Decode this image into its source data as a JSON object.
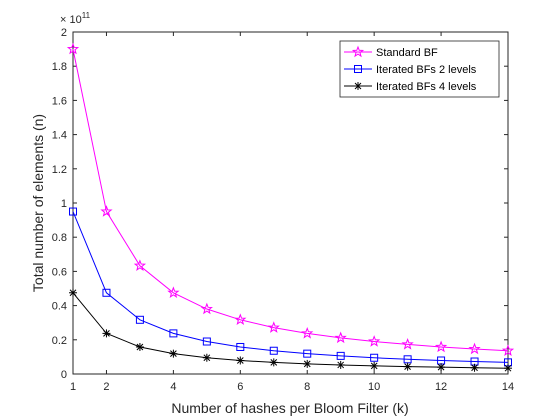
{
  "chart_data": {
    "type": "line",
    "xlabel": "Number of hashes per Bloom Filter (k)",
    "ylabel": "Total number of elements (n)",
    "y_exponent_label": "× 10",
    "y_exponent_power": "11",
    "y_scale": 100000000000,
    "xlim": [
      1,
      14
    ],
    "ylim": [
      0,
      2
    ],
    "xticks": [
      1,
      2,
      4,
      6,
      8,
      10,
      12,
      14
    ],
    "xtick_labels": [
      "1",
      "2",
      "4",
      "6",
      "8",
      "10",
      "12",
      "14"
    ],
    "yticks": [
      0,
      0.2,
      0.4,
      0.6,
      0.8,
      1,
      1.2,
      1.4,
      1.6,
      1.8,
      2
    ],
    "ytick_labels": [
      "0",
      "0.2",
      "0.4",
      "0.6",
      "0.8",
      "1",
      "1.2",
      "1.4",
      "1.6",
      "1.8",
      "2"
    ],
    "grid": false,
    "legend_position": "top-right",
    "x": [
      1,
      2,
      3,
      4,
      5,
      6,
      7,
      8,
      9,
      10,
      11,
      12,
      13,
      14
    ],
    "series": [
      {
        "name": "Standard BF",
        "color": "#ff00ff",
        "marker": "pentagram",
        "values": [
          1.9,
          0.95,
          0.633,
          0.475,
          0.38,
          0.317,
          0.271,
          0.2375,
          0.211,
          0.19,
          0.173,
          0.158,
          0.146,
          0.136
        ]
      },
      {
        "name": "Iterated BFs 2 levels",
        "color": "#0000ff",
        "marker": "square",
        "values": [
          0.95,
          0.475,
          0.317,
          0.2375,
          0.19,
          0.158,
          0.136,
          0.119,
          0.106,
          0.095,
          0.086,
          0.079,
          0.073,
          0.068
        ]
      },
      {
        "name": "Iterated BFs 4 levels",
        "color": "#000000",
        "marker": "asterisk",
        "values": [
          0.475,
          0.2375,
          0.158,
          0.119,
          0.095,
          0.079,
          0.068,
          0.059,
          0.053,
          0.0475,
          0.043,
          0.04,
          0.0365,
          0.034
        ]
      }
    ]
  }
}
